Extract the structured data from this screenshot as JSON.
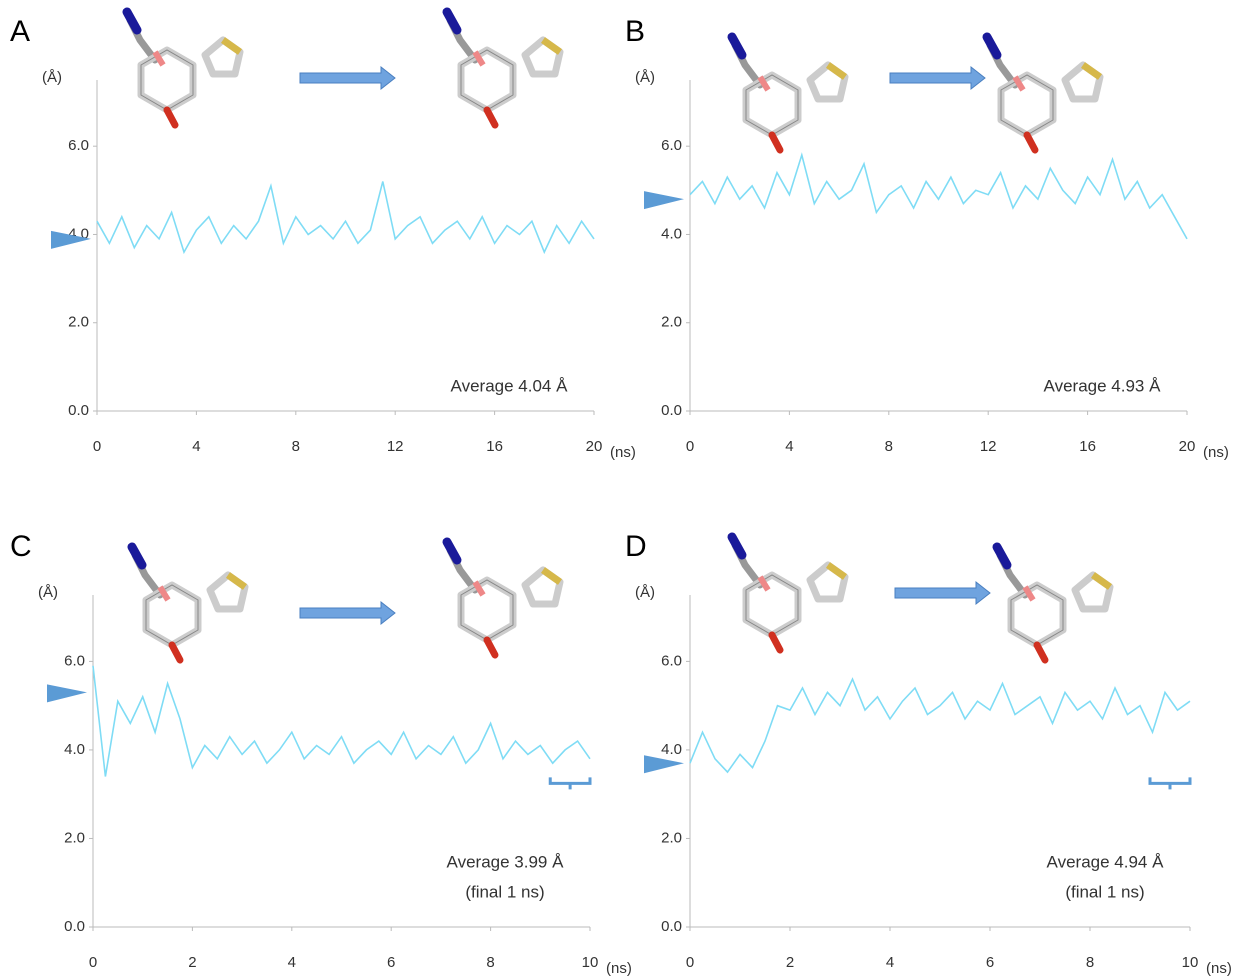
{
  "chart_data": [
    {
      "type": "line",
      "title": "A",
      "y_label": "(Å)",
      "x_label": "(ns)",
      "annotation": [
        "Average 4.04 Å"
      ],
      "color": "#7fdcf5",
      "marker_color": "#5b9bd5",
      "start_marker": 3.9,
      "xlim": [
        0,
        20
      ],
      "xticks": [
        0,
        4,
        8,
        12,
        16,
        20
      ],
      "ylim": [
        0,
        7.5
      ],
      "yticks": [
        {
          "value": 0,
          "label": "0.0"
        },
        {
          "value": 2,
          "label": "2.0"
        },
        {
          "value": 4,
          "label": "4.0"
        },
        {
          "value": 6,
          "label": "6.0"
        }
      ],
      "x": [
        0,
        0.5,
        1,
        1.5,
        2,
        2.5,
        3,
        3.5,
        4,
        4.5,
        5,
        5.5,
        6,
        6.5,
        7,
        7.5,
        8,
        8.5,
        9,
        9.5,
        10,
        10.5,
        11,
        11.5,
        12,
        12.5,
        13,
        13.5,
        14,
        14.5,
        15,
        15.5,
        16,
        16.5,
        17,
        17.5,
        18,
        18.5,
        19,
        19.5,
        20
      ],
      "values": [
        4.3,
        3.8,
        4.4,
        3.7,
        4.2,
        3.9,
        4.5,
        3.6,
        4.1,
        4.4,
        3.8,
        4.2,
        3.9,
        4.3,
        5.1,
        3.8,
        4.4,
        4.0,
        4.2,
        3.9,
        4.3,
        3.8,
        4.1,
        5.2,
        3.9,
        4.2,
        4.4,
        3.8,
        4.1,
        4.3,
        3.9,
        4.4,
        3.8,
        4.2,
        4.0,
        4.3,
        3.6,
        4.2,
        3.8,
        4.3,
        3.9
      ]
    },
    {
      "type": "line",
      "title": "B",
      "y_label": "(Å)",
      "x_label": "(ns)",
      "annotation": [
        "Average 4.93 Å"
      ],
      "color": "#7fdcf5",
      "marker_color": "#5b9bd5",
      "start_marker": 4.8,
      "xlim": [
        0,
        20
      ],
      "xticks": [
        0,
        4,
        8,
        12,
        16,
        20
      ],
      "ylim": [
        0,
        7.5
      ],
      "yticks": [
        {
          "value": 0,
          "label": "0.0"
        },
        {
          "value": 2,
          "label": "2.0"
        },
        {
          "value": 4,
          "label": "4.0"
        },
        {
          "value": 6,
          "label": "6.0"
        }
      ],
      "x": [
        0,
        0.5,
        1,
        1.5,
        2,
        2.5,
        3,
        3.5,
        4,
        4.5,
        5,
        5.5,
        6,
        6.5,
        7,
        7.5,
        8,
        8.5,
        9,
        9.5,
        10,
        10.5,
        11,
        11.5,
        12,
        12.5,
        13,
        13.5,
        14,
        14.5,
        15,
        15.5,
        16,
        16.5,
        17,
        17.5,
        18,
        18.5,
        19,
        19.5,
        20
      ],
      "values": [
        4.9,
        5.2,
        4.7,
        5.3,
        4.8,
        5.1,
        4.6,
        5.4,
        4.9,
        5.8,
        4.7,
        5.2,
        4.8,
        5.0,
        5.6,
        4.5,
        4.9,
        5.1,
        4.6,
        5.2,
        4.8,
        5.3,
        4.7,
        5.0,
        4.9,
        5.4,
        4.6,
        5.1,
        4.8,
        5.5,
        5.0,
        4.7,
        5.3,
        4.9,
        5.7,
        4.8,
        5.2,
        4.6,
        4.9,
        4.4,
        3.9
      ]
    },
    {
      "type": "line",
      "title": "C",
      "y_label": "(Å)",
      "x_label": "(ns)",
      "annotation": [
        "Average 3.99 Å",
        "(final 1 ns)"
      ],
      "color": "#7fdcf5",
      "marker_color": "#5b9bd5",
      "start_marker": 5.3,
      "bracket": [
        9.2,
        10
      ],
      "xlim": [
        0,
        10
      ],
      "xticks": [
        0,
        2,
        4,
        6,
        8,
        10
      ],
      "ylim": [
        0,
        7.5
      ],
      "yticks": [
        {
          "value": 0,
          "label": "0.0"
        },
        {
          "value": 2,
          "label": "2.0"
        },
        {
          "value": 4,
          "label": "4.0"
        },
        {
          "value": 6,
          "label": "6.0"
        }
      ],
      "x": [
        0,
        0.25,
        0.5,
        0.75,
        1,
        1.25,
        1.5,
        1.75,
        2,
        2.25,
        2.5,
        2.75,
        3,
        3.25,
        3.5,
        3.75,
        4,
        4.25,
        4.5,
        4.75,
        5,
        5.25,
        5.5,
        5.75,
        6,
        6.25,
        6.5,
        6.75,
        7,
        7.25,
        7.5,
        7.75,
        8,
        8.25,
        8.5,
        8.75,
        9,
        9.25,
        9.5,
        9.75,
        10
      ],
      "values": [
        5.9,
        3.4,
        5.1,
        4.6,
        5.2,
        4.4,
        5.5,
        4.7,
        3.6,
        4.1,
        3.8,
        4.3,
        3.9,
        4.2,
        3.7,
        4.0,
        4.4,
        3.8,
        4.1,
        3.9,
        4.3,
        3.7,
        4.0,
        4.2,
        3.9,
        4.4,
        3.8,
        4.1,
        3.9,
        4.3,
        3.7,
        4.0,
        4.6,
        3.8,
        4.2,
        3.9,
        4.1,
        3.7,
        4.0,
        4.2,
        3.8
      ]
    },
    {
      "type": "line",
      "title": "D",
      "y_label": "(Å)",
      "x_label": "(ns)",
      "annotation": [
        "Average 4.94 Å",
        "(final 1 ns)"
      ],
      "color": "#7fdcf5",
      "marker_color": "#5b9bd5",
      "start_marker": 3.7,
      "bracket": [
        9.2,
        10
      ],
      "xlim": [
        0,
        10
      ],
      "xticks": [
        0,
        2,
        4,
        6,
        8,
        10
      ],
      "ylim": [
        0,
        7.5
      ],
      "yticks": [
        {
          "value": 0,
          "label": "0.0"
        },
        {
          "value": 2,
          "label": "2.0"
        },
        {
          "value": 4,
          "label": "4.0"
        },
        {
          "value": 6,
          "label": "6.0"
        }
      ],
      "x": [
        0,
        0.25,
        0.5,
        0.75,
        1,
        1.25,
        1.5,
        1.75,
        2,
        2.25,
        2.5,
        2.75,
        3,
        3.25,
        3.5,
        3.75,
        4,
        4.25,
        4.5,
        4.75,
        5,
        5.25,
        5.5,
        5.75,
        6,
        6.25,
        6.5,
        6.75,
        7,
        7.25,
        7.5,
        7.75,
        8,
        8.25,
        8.5,
        8.75,
        9,
        9.25,
        9.5,
        9.75,
        10
      ],
      "values": [
        3.7,
        4.4,
        3.8,
        3.5,
        3.9,
        3.6,
        4.2,
        5.0,
        4.9,
        5.4,
        4.8,
        5.3,
        5.0,
        5.6,
        4.9,
        5.2,
        4.7,
        5.1,
        5.4,
        4.8,
        5.0,
        5.3,
        4.7,
        5.1,
        4.9,
        5.5,
        4.8,
        5.0,
        5.2,
        4.6,
        5.3,
        4.9,
        5.1,
        4.7,
        5.4,
        4.8,
        5.0,
        4.4,
        5.3,
        4.9,
        5.1
      ]
    }
  ]
}
